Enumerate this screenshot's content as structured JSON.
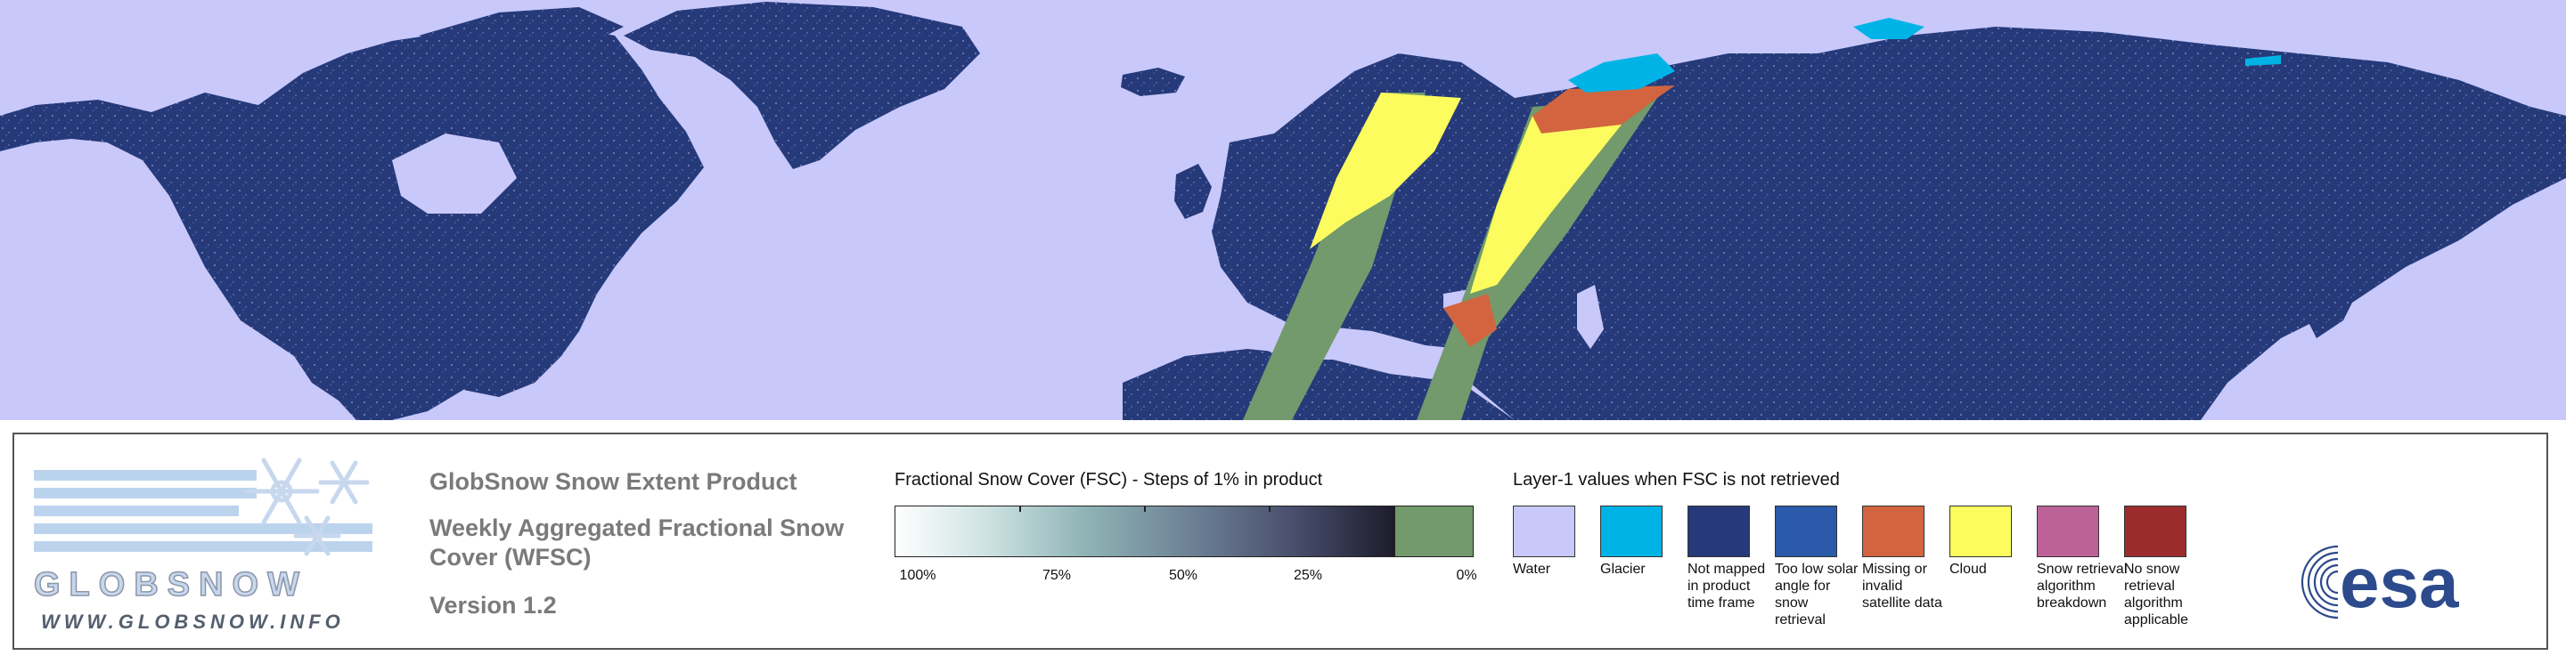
{
  "map": {
    "colors": {
      "water": "#c8c8fb",
      "not_mapped": "#263a7a",
      "glacier": "#00b3e6",
      "missing": "#d2653f",
      "cloud": "#fcfc5e",
      "snow_free": "#729a6c"
    }
  },
  "logo": {
    "wordmark": "GLOBSNOW",
    "url": "WWW.GLOBSNOW.INFO"
  },
  "product": {
    "title": "GlobSnow Snow Extent Product",
    "subtitle": "Weekly Aggregated Fractional Snow Cover (WFSC)",
    "version": "Version 1.2"
  },
  "fsc_legend": {
    "title": "Fractional Snow Cover (FSC) - Steps of 1% in product",
    "ticks": [
      "100%",
      "75%",
      "50%",
      "25%",
      "0%"
    ],
    "gradient_from": "#ffffff",
    "gradient_to": "#1d1c2c",
    "zero_color": "#729a6c"
  },
  "layer1_legend": {
    "title": "Layer-1 values when FSC is not retrieved",
    "items": [
      {
        "label": "Water",
        "color": "#c8c8fb"
      },
      {
        "label": "Glacier",
        "color": "#00b3e6"
      },
      {
        "label": "Not mapped in product time frame",
        "color": "#263a7a"
      },
      {
        "label": "Too low solar angle for snow retrieval",
        "color": "#2a5aa9"
      },
      {
        "label": "Missing or invalid satellite data",
        "color": "#d2653f"
      },
      {
        "label": "Cloud",
        "color": "#fcfc5e"
      },
      {
        "label": "Snow retrieval algorithm breakdown",
        "color": "#bd6299"
      },
      {
        "label": "No snow retrieval algorithm applicable",
        "color": "#9c2c2c"
      }
    ]
  },
  "esa_logo": {
    "text": "esa"
  }
}
